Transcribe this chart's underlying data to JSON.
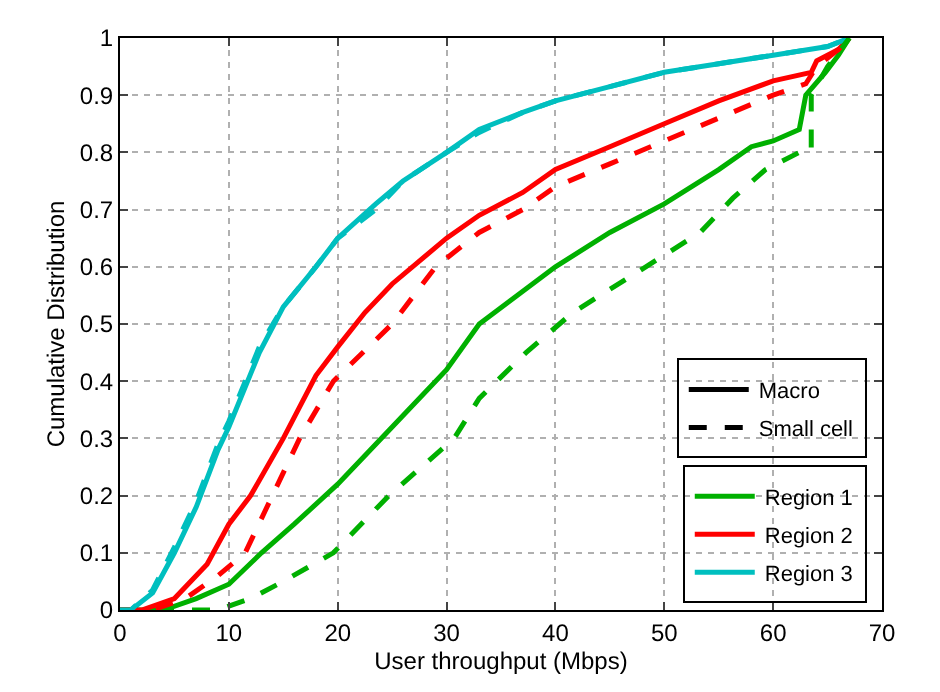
{
  "chart_data": {
    "type": "line",
    "xlabel": "User throughput (Mbps)",
    "ylabel": "Cumulative Distribution",
    "xlim": [
      0,
      70
    ],
    "xticks": [
      0,
      10,
      20,
      30,
      40,
      50,
      60,
      70
    ],
    "ylim": [
      0,
      1
    ],
    "yticks": [
      0,
      0.1,
      0.2,
      0.3,
      0.4,
      0.5,
      0.6,
      0.7,
      0.8,
      0.9,
      1
    ],
    "grid": true,
    "legend": "bottom right",
    "marker": "none",
    "series": [
      {
        "name": "Macro",
        "color": "#000000",
        "line_style": "solid"
      },
      {
        "name": "Small cell",
        "color": "#000000",
        "line_style": "dashed"
      },
      {
        "name": "Region 1",
        "color": "#00b000",
        "line_style": "solid",
        "x": [
          0,
          4,
          7,
          10,
          13,
          16,
          20,
          25,
          30,
          33,
          40,
          45,
          50,
          55,
          58,
          60,
          62.4,
          63,
          64.8,
          66,
          67
        ],
        "values": [
          0,
          0,
          0.02,
          0.045,
          0.1,
          0.15,
          0.22,
          0.32,
          0.42,
          0.5,
          0.6,
          0.66,
          0.71,
          0.77,
          0.81,
          0.82,
          0.84,
          0.9,
          0.94,
          0.97,
          1
        ]
      },
      {
        "name": "Region 2",
        "color": "#ff0000",
        "line_style": "solid",
        "x": [
          0,
          2,
          5,
          8,
          10,
          12,
          15,
          18,
          20,
          22.5,
          25,
          30,
          33,
          37,
          40,
          45,
          50,
          55,
          60,
          63.5,
          64,
          66,
          67
        ],
        "values": [
          0,
          0,
          0.02,
          0.08,
          0.15,
          0.2,
          0.3,
          0.41,
          0.46,
          0.52,
          0.57,
          0.65,
          0.69,
          0.73,
          0.77,
          0.81,
          0.85,
          0.89,
          0.925,
          0.94,
          0.96,
          0.98,
          1
        ]
      },
      {
        "name": "Region 3",
        "color": "#00bfbf",
        "line_style": "solid",
        "x": [
          0,
          1,
          3,
          5,
          7,
          9,
          10,
          12.8,
          15,
          18,
          20,
          23.5,
          26,
          30,
          33,
          37,
          40,
          45,
          50,
          55,
          60,
          65,
          67
        ],
        "values": [
          0,
          0,
          0.03,
          0.1,
          0.18,
          0.28,
          0.32,
          0.45,
          0.53,
          0.6,
          0.65,
          0.71,
          0.75,
          0.8,
          0.84,
          0.87,
          0.89,
          0.915,
          0.94,
          0.955,
          0.97,
          0.985,
          1
        ]
      },
      {
        "color": "#00b000",
        "line_style": "dashed",
        "x": [
          0,
          9,
          12,
          15,
          19.6,
          24.7,
          30.7,
          33,
          37.3,
          41.6,
          48.3,
          53.3,
          56.3,
          59.3,
          62.4,
          63.5,
          63.5,
          65,
          67
        ],
        "values": [
          0,
          0,
          0.02,
          0.05,
          0.1,
          0.2,
          0.3,
          0.37,
          0.45,
          0.52,
          0.6,
          0.66,
          0.72,
          0.77,
          0.8,
          0.8,
          0.9,
          0.95,
          1
        ]
      },
      {
        "color": "#ff0000",
        "line_style": "dashed",
        "x": [
          0,
          3,
          6,
          9,
          11.5,
          14,
          16.5,
          19.6,
          25,
          29,
          33,
          37,
          40,
          45,
          50,
          55,
          60,
          63,
          64,
          66,
          67
        ],
        "values": [
          0,
          0,
          0.02,
          0.06,
          0.1,
          0.2,
          0.3,
          0.4,
          0.5,
          0.6,
          0.66,
          0.7,
          0.74,
          0.78,
          0.82,
          0.86,
          0.9,
          0.92,
          0.95,
          0.98,
          1
        ]
      },
      {
        "color": "#00bfbf",
        "line_style": "dashed",
        "x": [
          0,
          1,
          3,
          5,
          7,
          9,
          10,
          12.8,
          15,
          18,
          20,
          23.5,
          26,
          30,
          33,
          37,
          40,
          45,
          50,
          55,
          60,
          65,
          67
        ],
        "values": [
          0,
          0,
          0.035,
          0.11,
          0.19,
          0.29,
          0.33,
          0.46,
          0.53,
          0.6,
          0.65,
          0.7,
          0.75,
          0.8,
          0.835,
          0.87,
          0.89,
          0.915,
          0.94,
          0.955,
          0.97,
          0.985,
          1
        ]
      }
    ]
  }
}
